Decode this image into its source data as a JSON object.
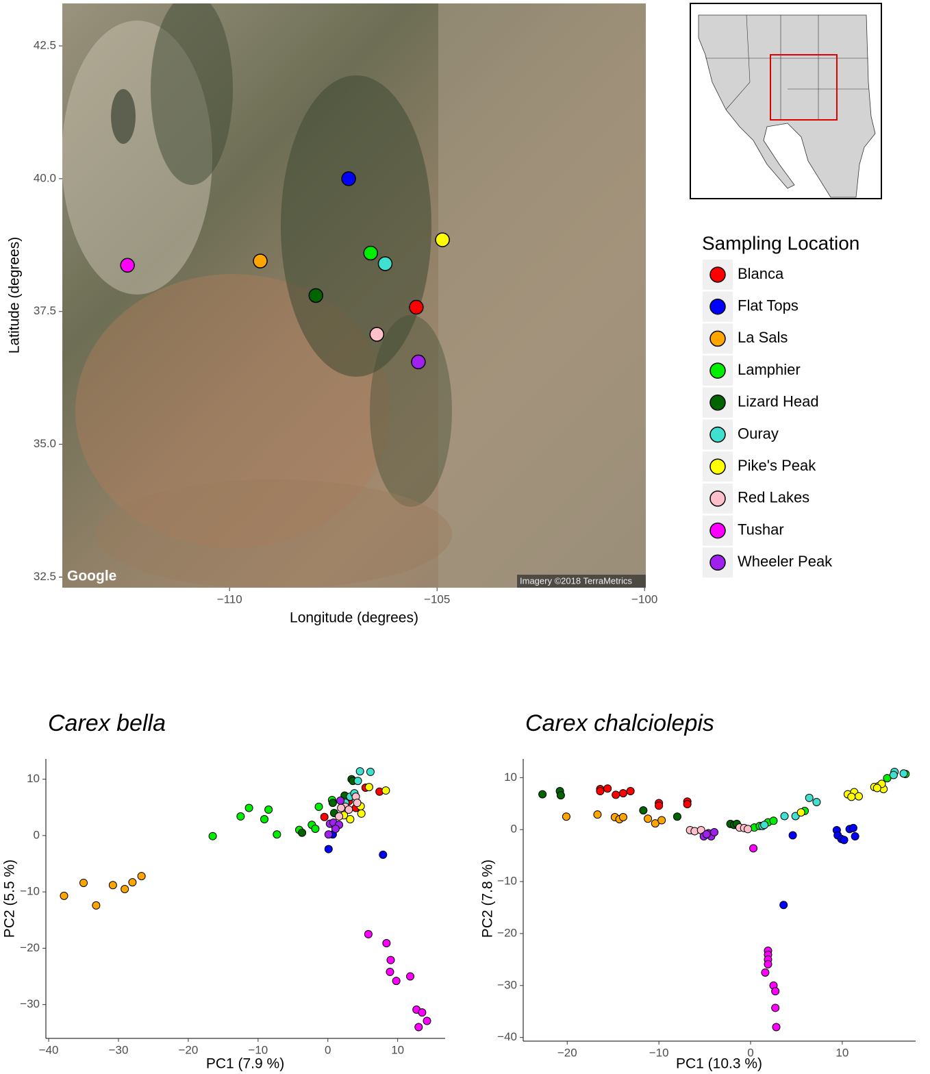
{
  "chart_data": [
    {
      "type": "scatter",
      "xlabel": "Longitude (degrees)",
      "ylabel": "Latitude (degrees)",
      "xlim": [
        -114.03,
        -99.97
      ],
      "ylim": [
        32.3,
        43.3
      ],
      "xticks": [
        {
          "value": -110,
          "label": "−110"
        },
        {
          "value": -105,
          "label": "−105"
        },
        {
          "value": -100,
          "label": "−100"
        }
      ],
      "yticks": [
        32.5,
        {
          "value": 35,
          "label": "35.0"
        },
        37.5,
        {
          "value": 40,
          "label": "40.0"
        },
        42.5
      ],
      "legend_title": "Sampling Location",
      "legend": "right",
      "annotations": [
        "Google",
        "Imagery ©2018 TerraMetrics"
      ],
      "series": [
        {
          "name": "Blanca",
          "color": "#ff0000",
          "x": [
            -105.5
          ],
          "values": [
            37.58
          ]
        },
        {
          "name": "Flat Tops",
          "color": "#0000ff",
          "x": [
            -107.13
          ],
          "values": [
            40.0
          ]
        },
        {
          "name": "La Sals",
          "color": "#ffa500",
          "x": [
            -109.26
          ],
          "values": [
            38.45
          ]
        },
        {
          "name": "Lamphier",
          "color": "#00ee00",
          "x": [
            -106.6
          ],
          "values": [
            38.6
          ]
        },
        {
          "name": "Lizard Head",
          "color": "#006400",
          "x": [
            -107.92
          ],
          "values": [
            37.8
          ]
        },
        {
          "name": "Ouray",
          "color": "#40e0d0",
          "x": [
            -106.25
          ],
          "values": [
            38.4
          ]
        },
        {
          "name": "Pike's Peak",
          "color": "#ffff00",
          "x": [
            -104.87
          ],
          "values": [
            38.85
          ]
        },
        {
          "name": "Red Lakes",
          "color": "#ffc0cb",
          "x": [
            -106.45
          ],
          "values": [
            37.07
          ]
        },
        {
          "name": "Tushar",
          "color": "#ff00ff",
          "x": [
            -112.46
          ],
          "values": [
            38.37
          ]
        },
        {
          "name": "Wheeler Peak",
          "color": "#a020f0",
          "x": [
            -105.45
          ],
          "values": [
            36.55
          ]
        }
      ]
    },
    {
      "type": "scatter",
      "title": "Carex bella",
      "xlabel": "PC1 (7.9 %)",
      "ylabel": "PC2 (5.5 %)",
      "xlim": [
        -40.4,
        16.8
      ],
      "ylim": [
        -36.0,
        13.6
      ],
      "xticks": [
        {
          "value": -40,
          "label": "−40"
        },
        {
          "value": -30,
          "label": "−30"
        },
        {
          "value": -20,
          "label": "−20"
        },
        {
          "value": -10,
          "label": "−10"
        },
        0,
        10
      ],
      "yticks": [
        10,
        0,
        {
          "value": -10,
          "label": "−10"
        },
        {
          "value": -20,
          "label": "−20"
        },
        {
          "value": -30,
          "label": "−30"
        }
      ],
      "series": [
        {
          "color": "#ff0000",
          "x": [
            -0.5,
            5.4,
            7.4,
            4.0,
            3.0
          ],
          "values": [
            3.3,
            8.5,
            7.8,
            4.9,
            6.1
          ]
        },
        {
          "color": "#0000ff",
          "x": [
            0.1,
            7.9,
            0.7
          ],
          "values": [
            -2.4,
            -3.4,
            0.2
          ]
        },
        {
          "color": "#ffa500",
          "x": [
            -37.8,
            -35,
            -33.2,
            -30.8,
            -29.1,
            -28,
            -26.7
          ],
          "values": [
            -10.7,
            -8.4,
            -12.4,
            -8.8,
            -9.5,
            -8.3,
            -7.2
          ]
        },
        {
          "color": "#00ee00",
          "x": [
            -16.5,
            -12.5,
            -11.3,
            -9.1,
            -8.5,
            -7.3,
            -4.1,
            -2.3,
            -1.8,
            -1.3,
            0.6
          ],
          "values": [
            -0.1,
            3.4,
            4.9,
            2.9,
            4.6,
            0.2,
            1.0,
            1.9,
            1.2,
            5.1,
            6.3
          ]
        },
        {
          "color": "#006400",
          "x": [
            -3.7,
            0.7,
            0.9,
            2.4,
            3.4,
            3.6,
            2.1
          ],
          "values": [
            0.5,
            5.8,
            4.0,
            7.1,
            10.0,
            9.7,
            5.2
          ]
        },
        {
          "color": "#40e0d0",
          "x": [
            4.6,
            6.1,
            4.3,
            3.2,
            3.8,
            2.5
          ],
          "values": [
            11.4,
            11.3,
            9.7,
            6.9,
            7.5,
            5.8
          ]
        },
        {
          "color": "#ffff00",
          "x": [
            8.3,
            5.9,
            4.7,
            4.8,
            3.2,
            2.3
          ],
          "values": [
            8.0,
            8.6,
            5.2,
            3.9,
            2.9,
            3.6
          ]
        },
        {
          "color": "#ffc0cb",
          "x": [
            4.0,
            2.5,
            1.6,
            3.0,
            1.9,
            4.2
          ],
          "values": [
            6.9,
            5.1,
            3.4,
            4.6,
            4.9,
            5.8
          ]
        },
        {
          "color": "#ff00ff",
          "x": [
            5.8,
            8.4,
            9.0,
            8.9,
            9.8,
            11.8,
            12.7,
            13.5,
            14.2,
            13.0
          ],
          "values": [
            -17.5,
            -19.1,
            -22.1,
            -24.2,
            -25.8,
            -25.0,
            -30.9,
            -31.4,
            -32.9,
            -34.0
          ]
        },
        {
          "color": "#a020f0",
          "x": [
            0.3,
            0.8,
            1.6,
            1.1,
            1.8,
            0.1
          ],
          "values": [
            2.1,
            2.3,
            1.9,
            1.2,
            6.2,
            0.2
          ]
        }
      ]
    },
    {
      "type": "scatter",
      "title": "Carex chalciolepis",
      "xlabel": "PC1 (10.3 %)",
      "ylabel": "PC2 (7.8 %)",
      "xlim": [
        -24.8,
        18.0
      ],
      "ylim": [
        -40.7,
        13.6
      ],
      "xticks": [
        {
          "value": -20,
          "label": "−20"
        },
        {
          "value": -10,
          "label": "−10"
        },
        0,
        10
      ],
      "yticks": [
        10,
        0,
        {
          "value": -10,
          "label": "−10"
        },
        {
          "value": -20,
          "label": "−20"
        },
        {
          "value": -30,
          "label": "−30"
        },
        {
          "value": -40,
          "label": "−40"
        }
      ],
      "series": [
        {
          "color": "#ff0000",
          "x": [
            -16.4,
            -16.4,
            -15.6,
            -14.7,
            -13.9,
            -13.1,
            -10,
            -10,
            -6.9,
            -6.9
          ],
          "values": [
            7.8,
            7.4,
            7.9,
            6.7,
            7.0,
            7.4,
            5.1,
            4.6,
            5.4,
            4.9
          ]
        },
        {
          "color": "#0000ff",
          "x": [
            3.6,
            4.6,
            9.4,
            9.5,
            9.9,
            10.2,
            10.8,
            11.2,
            11.4
          ],
          "values": [
            -14.5,
            -1.1,
            -0.1,
            -1.1,
            -1.8,
            -2.0,
            0.1,
            0.3,
            -1.3
          ]
        },
        {
          "color": "#ffa500",
          "x": [
            -20.1,
            -16.7,
            -14.8,
            -14.3,
            -13.9,
            -11.2,
            -10.4,
            -9.7
          ],
          "values": [
            2.5,
            2.9,
            2.4,
            2.0,
            2.4,
            2.1,
            1.2,
            1.8
          ]
        },
        {
          "color": "#00ee00",
          "x": [
            0.4,
            1.0,
            1.9,
            2.5,
            5.9,
            14.9,
            16.9
          ],
          "values": [
            0.4,
            0.7,
            1.4,
            1.7,
            3.6,
            9.9,
            10.7
          ]
        },
        {
          "color": "#006400",
          "x": [
            -22.7,
            -20.8,
            -20.7,
            -11.7,
            -8.0,
            -2.2,
            -1.8,
            -1.5
          ],
          "values": [
            6.8,
            7.4,
            6.6,
            3.7,
            2.5,
            1.1,
            0.9,
            1.1
          ]
        },
        {
          "color": "#40e0d0",
          "x": [
            1.3,
            1.5,
            3.7,
            4.9,
            6.4,
            7.2,
            15.7,
            16.7,
            15.6
          ],
          "values": [
            0.7,
            0.9,
            2.6,
            2.6,
            6.1,
            5.3,
            11.1,
            10.8,
            10.5
          ]
        },
        {
          "color": "#ffff00",
          "x": [
            5.5,
            10.6,
            11.3,
            11.8,
            11.0,
            13.5,
            14.0,
            14.5,
            14.3,
            13.8
          ],
          "values": [
            3.3,
            6.8,
            7.2,
            6.4,
            6.3,
            8.2,
            8.4,
            7.8,
            8.8,
            8.0
          ]
        },
        {
          "color": "#ffc0cb",
          "x": [
            -6.6,
            -6.1,
            -5.4,
            -1.2,
            -0.7,
            -0.3
          ],
          "values": [
            -0.1,
            -0.3,
            -0.1,
            0.4,
            0.3,
            0.1
          ]
        },
        {
          "color": "#ff00ff",
          "x": [
            0.3,
            1.9,
            1.9,
            1.9,
            1.9,
            1.6,
            2.5,
            2.7,
            2.7,
            2.8
          ],
          "values": [
            -3.6,
            -23.3,
            -24.1,
            -25.0,
            -25.9,
            -27.5,
            -30.0,
            -31.1,
            -34.3,
            -38.0
          ]
        },
        {
          "color": "#a020f0",
          "x": [
            -5.1,
            -4.6,
            -4.3,
            -3.96,
            -4.8
          ],
          "values": [
            -1.3,
            -0.7,
            -1.3,
            -0.5,
            -0.9
          ]
        }
      ]
    }
  ]
}
